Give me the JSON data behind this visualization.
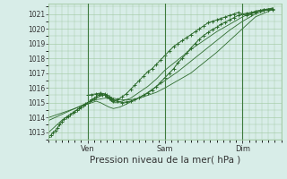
{
  "bg_color": "#d8ede8",
  "grid_color": "#a0c8a0",
  "line_color": "#2d6b2d",
  "marker_color": "#2d6b2d",
  "xlabel": "Pression niveau de la mer( hPa )",
  "xlabel_fontsize": 7.5,
  "tick_fontsize": 5.5,
  "ylim": [
    1012.5,
    1021.7
  ],
  "yticks": [
    1013,
    1014,
    1015,
    1016,
    1017,
    1018,
    1019,
    1020,
    1021
  ],
  "xlim": [
    0.0,
    1.08
  ],
  "dark_vlines": [
    0.18,
    0.54,
    0.9
  ],
  "xtick_positions": [
    0.18,
    0.54,
    0.9
  ],
  "xtick_labels": [
    "Ven",
    "Sam",
    "Dim"
  ],
  "series": [
    {
      "x": [
        0.0,
        0.01,
        0.02,
        0.03,
        0.04,
        0.05,
        0.06,
        0.07,
        0.08,
        0.09,
        0.1,
        0.11,
        0.12,
        0.13,
        0.14,
        0.15,
        0.16,
        0.17,
        0.18,
        0.19,
        0.2,
        0.21,
        0.22,
        0.23,
        0.24,
        0.25,
        0.26,
        0.27,
        0.28,
        0.29,
        0.3,
        0.32,
        0.34,
        0.36,
        0.38,
        0.4,
        0.42,
        0.44,
        0.46,
        0.48,
        0.5,
        0.52,
        0.54,
        0.56,
        0.58,
        0.6,
        0.62,
        0.64,
        0.66,
        0.68,
        0.7,
        0.72,
        0.74,
        0.76,
        0.78,
        0.8,
        0.82,
        0.84,
        0.86,
        0.88,
        0.9,
        0.92,
        0.94,
        0.96,
        0.98,
        1.0,
        1.02,
        1.04
      ],
      "y": [
        1012.7,
        1012.8,
        1013.0,
        1013.1,
        1013.3,
        1013.5,
        1013.7,
        1013.9,
        1014.0,
        1014.1,
        1014.2,
        1014.3,
        1014.4,
        1014.5,
        1014.6,
        1014.7,
        1014.8,
        1014.9,
        1015.0,
        1015.1,
        1015.2,
        1015.3,
        1015.4,
        1015.5,
        1015.6,
        1015.55,
        1015.5,
        1015.4,
        1015.3,
        1015.2,
        1015.1,
        1015.2,
        1015.4,
        1015.6,
        1015.9,
        1016.2,
        1016.5,
        1016.8,
        1017.1,
        1017.3,
        1017.6,
        1017.9,
        1018.2,
        1018.5,
        1018.8,
        1019.0,
        1019.2,
        1019.4,
        1019.6,
        1019.8,
        1020.0,
        1020.2,
        1020.4,
        1020.5,
        1020.6,
        1020.7,
        1020.8,
        1020.9,
        1021.0,
        1021.1,
        1021.0,
        1020.9,
        1021.0,
        1021.1,
        1021.2,
        1021.3,
        1021.3,
        1021.3
      ],
      "marker": "+",
      "markersize": 2.5,
      "linewidth": 0.7
    },
    {
      "x": [
        0.0,
        0.03,
        0.06,
        0.09,
        0.12,
        0.15,
        0.18,
        0.22,
        0.26,
        0.3,
        0.34,
        0.38,
        0.42,
        0.46,
        0.5,
        0.54,
        0.6,
        0.66,
        0.72,
        0.78,
        0.84,
        0.9,
        0.96,
        1.04
      ],
      "y": [
        1013.0,
        1013.4,
        1013.8,
        1014.1,
        1014.4,
        1014.7,
        1015.0,
        1015.2,
        1015.3,
        1015.3,
        1015.2,
        1015.2,
        1015.3,
        1015.5,
        1015.7,
        1016.0,
        1016.5,
        1017.0,
        1017.7,
        1018.4,
        1019.2,
        1020.0,
        1020.8,
        1021.3
      ],
      "marker": null,
      "linewidth": 0.6
    },
    {
      "x": [
        0.0,
        0.03,
        0.06,
        0.09,
        0.12,
        0.15,
        0.18,
        0.2,
        0.22,
        0.24,
        0.26,
        0.27,
        0.28,
        0.29,
        0.3,
        0.32,
        0.34,
        0.36,
        0.38,
        0.4,
        0.42,
        0.46,
        0.5,
        0.54,
        0.6,
        0.66,
        0.72,
        0.78,
        0.84,
        0.9,
        0.96,
        1.04
      ],
      "y": [
        1013.8,
        1014.0,
        1014.2,
        1014.4,
        1014.6,
        1014.8,
        1015.0,
        1015.15,
        1015.3,
        1015.45,
        1015.5,
        1015.45,
        1015.3,
        1015.1,
        1015.0,
        1015.0,
        1015.1,
        1015.2,
        1015.3,
        1015.5,
        1015.7,
        1016.1,
        1016.6,
        1017.2,
        1017.9,
        1018.6,
        1019.2,
        1019.8,
        1020.3,
        1020.8,
        1021.2,
        1021.4
      ],
      "marker": null,
      "linewidth": 0.6
    },
    {
      "x": [
        0.0,
        0.03,
        0.06,
        0.09,
        0.12,
        0.15,
        0.18,
        0.2,
        0.22,
        0.24,
        0.26,
        0.28,
        0.3,
        0.33,
        0.36,
        0.4,
        0.44,
        0.48,
        0.54,
        0.6,
        0.66,
        0.72,
        0.78,
        0.84,
        0.9,
        0.96,
        1.04
      ],
      "y": [
        1014.0,
        1014.15,
        1014.3,
        1014.45,
        1014.6,
        1014.75,
        1014.9,
        1015.0,
        1015.1,
        1015.0,
        1014.85,
        1014.7,
        1014.6,
        1014.7,
        1014.9,
        1015.2,
        1015.5,
        1015.9,
        1016.5,
        1017.1,
        1017.8,
        1018.5,
        1019.2,
        1019.9,
        1020.5,
        1021.0,
        1021.4
      ],
      "marker": null,
      "linewidth": 0.6
    },
    {
      "x": [
        0.18,
        0.2,
        0.22,
        0.24,
        0.26,
        0.27,
        0.28,
        0.29,
        0.3,
        0.32,
        0.34,
        0.36,
        0.38,
        0.4,
        0.42,
        0.44,
        0.46,
        0.48,
        0.5,
        0.52,
        0.54,
        0.56,
        0.58,
        0.6,
        0.62,
        0.64,
        0.66,
        0.68,
        0.7,
        0.72,
        0.74,
        0.76,
        0.78,
        0.8,
        0.82,
        0.84,
        0.86,
        0.88,
        0.9,
        0.92,
        0.94,
        0.96,
        0.98,
        1.0,
        1.02,
        1.04
      ],
      "y": [
        1015.5,
        1015.55,
        1015.6,
        1015.65,
        1015.6,
        1015.5,
        1015.4,
        1015.3,
        1015.2,
        1015.1,
        1015.0,
        1015.05,
        1015.1,
        1015.2,
        1015.35,
        1015.5,
        1015.65,
        1015.85,
        1016.1,
        1016.4,
        1016.7,
        1017.0,
        1017.3,
        1017.7,
        1018.0,
        1018.35,
        1018.7,
        1019.0,
        1019.3,
        1019.55,
        1019.75,
        1019.95,
        1020.1,
        1020.3,
        1020.45,
        1020.6,
        1020.75,
        1020.9,
        1021.0,
        1021.05,
        1021.1,
        1021.15,
        1021.2,
        1021.25,
        1021.3,
        1021.35
      ],
      "marker": "+",
      "markersize": 2.5,
      "linewidth": 0.7
    }
  ]
}
